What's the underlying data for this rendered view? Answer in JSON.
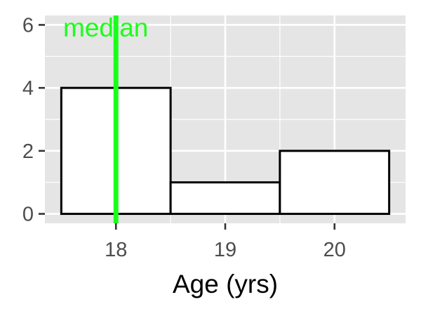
{
  "chart_data": {
    "type": "bar",
    "title": "",
    "xlabel": "Age (yrs)",
    "ylabel": "",
    "x_ticks": [
      "18",
      "19",
      "20"
    ],
    "y_ticks": [
      "0",
      "2",
      "4",
      "6"
    ],
    "bins": [
      {
        "x_from": 17.5,
        "x_to": 18.5,
        "count": 4
      },
      {
        "x_from": 18.5,
        "x_to": 19.5,
        "count": 1
      },
      {
        "x_from": 19.5,
        "x_to": 20.5,
        "count": 2
      }
    ],
    "xlim": [
      17.35,
      20.65
    ],
    "ylim": [
      -0.3,
      6.3
    ],
    "median": 18,
    "median_label": "median",
    "median_color": "#1aff1a",
    "panel_background": "#e5e5e5",
    "grid_color": "#ffffff",
    "bar_fill": "#ffffff",
    "bar_stroke": "#000000",
    "grid": true,
    "legend": "none"
  }
}
